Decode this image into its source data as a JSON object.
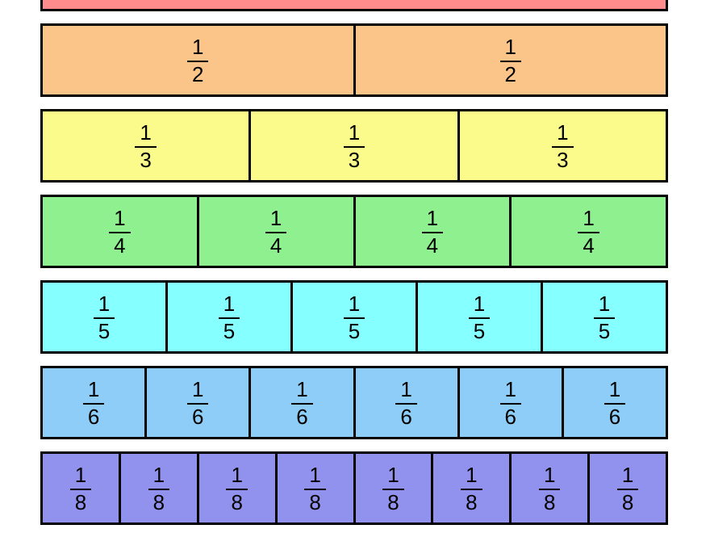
{
  "figure": {
    "kind": "fraction-strips",
    "background_color": "#FFFFFF",
    "border_color": "#000000",
    "text_color": "#000000"
  },
  "rows": [
    {
      "id": "whole",
      "parts": 1,
      "color": "#FF8C8C",
      "label_visible": false
    },
    {
      "id": "halves",
      "parts": 2,
      "color": "#FBC489",
      "label_visible": true,
      "numerator": "1",
      "denominator": "2"
    },
    {
      "id": "thirds",
      "parts": 3,
      "color": "#FBFB8B",
      "label_visible": true,
      "numerator": "1",
      "denominator": "3"
    },
    {
      "id": "fourths",
      "parts": 4,
      "color": "#8EF08E",
      "label_visible": true,
      "numerator": "1",
      "denominator": "4"
    },
    {
      "id": "fifths",
      "parts": 5,
      "color": "#85FFFF",
      "label_visible": true,
      "numerator": "1",
      "denominator": "5"
    },
    {
      "id": "sixths",
      "parts": 6,
      "color": "#8DCDF8",
      "label_visible": true,
      "numerator": "1",
      "denominator": "6"
    },
    {
      "id": "eighths",
      "parts": 8,
      "color": "#9191EE",
      "label_visible": true,
      "numerator": "1",
      "denominator": "8"
    }
  ]
}
